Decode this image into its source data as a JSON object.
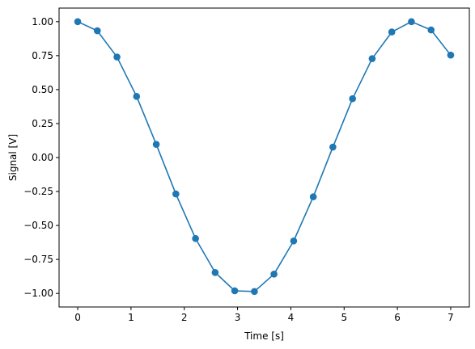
{
  "chart_data": {
    "type": "line",
    "title": "",
    "xlabel": "Time [s]",
    "ylabel": "Signal [V]",
    "xlim": [
      -0.35,
      7.35
    ],
    "ylim": [
      -1.1,
      1.1
    ],
    "grid": false,
    "legend": "none",
    "x_ticks": [
      0,
      1,
      2,
      3,
      4,
      5,
      6,
      7
    ],
    "x_tick_labels": [
      "0",
      "1",
      "2",
      "3",
      "4",
      "5",
      "6",
      "7"
    ],
    "y_ticks": [
      1.0,
      0.75,
      0.5,
      0.25,
      0.0,
      -0.25,
      -0.5,
      -0.75,
      -1.0
    ],
    "y_tick_labels": [
      "1.00",
      "0.75",
      "0.50",
      "0.25",
      "0.00",
      "−0.25",
      "−0.50",
      "−0.75",
      "−1.00"
    ],
    "series": [
      {
        "color": "#1f77b4",
        "marker": "circle",
        "x": [
          0.0,
          0.368,
          0.737,
          1.105,
          1.474,
          1.842,
          2.211,
          2.579,
          2.947,
          3.316,
          3.684,
          4.053,
          4.421,
          4.789,
          5.158,
          5.526,
          5.895,
          6.263,
          6.632,
          7.0
        ],
        "y": [
          1.0,
          0.933,
          0.74,
          0.45,
          0.097,
          -0.268,
          -0.596,
          -0.846,
          -0.981,
          -0.986,
          -0.858,
          -0.614,
          -0.289,
          0.077,
          0.433,
          0.728,
          0.924,
          1.0,
          0.939,
          0.754
        ]
      }
    ]
  }
}
